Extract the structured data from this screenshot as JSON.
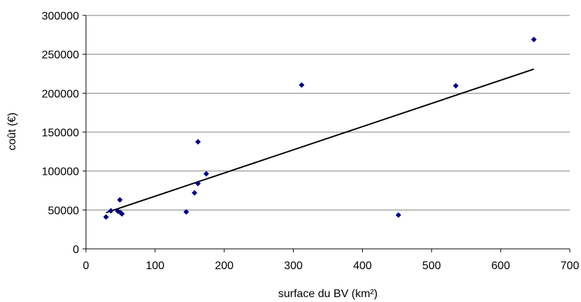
{
  "chart_data": {
    "type": "scatter",
    "title": "",
    "xlabel": "surface du BV (km²)",
    "ylabel": "coût (€)",
    "xlim": [
      0,
      700
    ],
    "ylim": [
      0,
      300000
    ],
    "x_ticks": [
      0,
      100,
      200,
      300,
      400,
      500,
      600,
      700
    ],
    "y_ticks": [
      0,
      50000,
      100000,
      150000,
      200000,
      250000,
      300000
    ],
    "grid": "horizontal",
    "legend": "none",
    "colors": {
      "points": "#000080",
      "trendline": "#000000",
      "grid": "#808080"
    },
    "points": [
      {
        "x": 29,
        "y": 41000
      },
      {
        "x": 36,
        "y": 49000
      },
      {
        "x": 46,
        "y": 48500
      },
      {
        "x": 49,
        "y": 63000
      },
      {
        "x": 50,
        "y": 46500
      },
      {
        "x": 52,
        "y": 45000
      },
      {
        "x": 145,
        "y": 47500
      },
      {
        "x": 157,
        "y": 72000
      },
      {
        "x": 162,
        "y": 84000
      },
      {
        "x": 162,
        "y": 137500
      },
      {
        "x": 174,
        "y": 96500
      },
      {
        "x": 312,
        "y": 210500
      },
      {
        "x": 452,
        "y": 43500
      },
      {
        "x": 535,
        "y": 209500
      },
      {
        "x": 648,
        "y": 269000
      }
    ],
    "trendline": {
      "x": [
        29,
        648
      ],
      "y": [
        46500,
        231000
      ]
    }
  }
}
